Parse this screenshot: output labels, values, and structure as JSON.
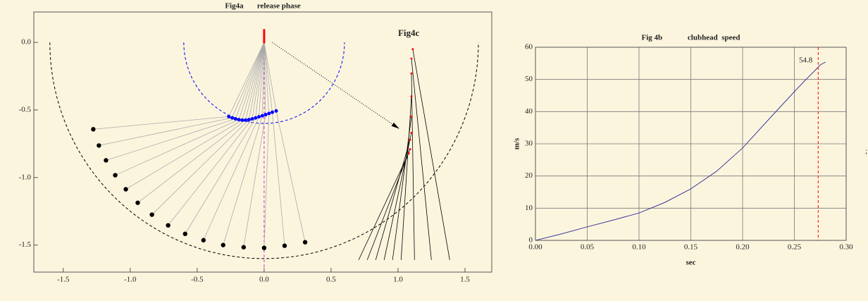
{
  "chart_data": [
    {
      "type": "scatter",
      "title": "Fig4a       release phase",
      "inset_title": "Fig4c",
      "xlim": [
        -1.72,
        1.7
      ],
      "ylim": [
        -1.7,
        0.225
      ],
      "xticks": [
        -1.5,
        {
          "value": -1,
          "label": "-1.0"
        },
        -0.5,
        {
          "value": 0,
          "label": "0.0"
        },
        0.5,
        {
          "value": 1,
          "label": "1.0"
        },
        1.5
      ],
      "yticks": [
        {
          "value": 0,
          "label": "0.0"
        },
        -0.5,
        {
          "value": -1,
          "label": "-1.0"
        },
        -1.5
      ],
      "pivot": [
        0,
        0
      ],
      "series": [
        {
          "color": "#0000ff",
          "x": [
            -0.264,
            -0.239,
            -0.214,
            -0.189,
            -0.164,
            -0.139,
            -0.114,
            -0.089,
            -0.064,
            -0.039,
            -0.014,
            0.011,
            0.036,
            0.061,
            0.09
          ],
          "y": [
            -0.549,
            -0.558,
            -0.566,
            -0.572,
            -0.575,
            -0.575,
            -0.572,
            -0.566,
            -0.559,
            -0.551,
            -0.543,
            -0.535,
            -0.526,
            -0.517,
            -0.507
          ]
        },
        {
          "color": "#000000",
          "x": [
            -1.276,
            -1.234,
            -1.181,
            -1.112,
            -1.033,
            -0.944,
            -0.838,
            -0.717,
            -0.59,
            -0.453,
            -0.306,
            -0.153,
            0.0,
            0.153,
            0.306
          ],
          "y": [
            -0.643,
            -0.763,
            -0.873,
            -0.983,
            -1.087,
            -1.187,
            -1.275,
            -1.354,
            -1.417,
            -1.464,
            -1.5,
            -1.516,
            -1.521,
            -1.505,
            -1.479
          ]
        },
        {
          "color": "#ff0000",
          "x": [
            0,
            0,
            0,
            0,
            0,
            0,
            0,
            0
          ],
          "y": [
            0.0,
            0.013,
            0.026,
            0.039,
            0.052,
            0.065,
            0.078,
            0.091
          ]
        }
      ],
      "circles": [
        {
          "r": 0.6,
          "color": "#0000ff"
        },
        {
          "r": 1.6,
          "color": "#000000"
        }
      ],
      "axis_line": {
        "x": 0,
        "color": "#cc33cc"
      },
      "club_lines": {
        "color": "#000000",
        "tip_color": "#ff0000",
        "x1": [
          1.08,
          1.09,
          1.09,
          1.1,
          1.1,
          1.1,
          1.1,
          1.1,
          1.11
        ],
        "y1": [
          -0.82,
          -0.79,
          -0.72,
          -0.67,
          -0.55,
          -0.4,
          -0.23,
          -0.12,
          -0.05
        ],
        "x2": [
          0.706,
          0.77,
          0.833,
          0.896,
          0.959,
          1.023,
          1.123,
          1.249,
          1.386
        ],
        "y2": [
          -1.61,
          -1.61,
          -1.61,
          -1.61,
          -1.61,
          -1.61,
          -1.61,
          -1.61,
          -1.61
        ]
      },
      "arrow": {
        "from": [
          0.06,
          0.0
        ],
        "to": [
          1.01,
          -0.64
        ]
      }
    },
    {
      "type": "line",
      "title": "Fig 4b             clubhead  speed",
      "x_label": "sec",
      "y_label": "m/s",
      "x": [
        0,
        0.025,
        0.05,
        0.075,
        0.1,
        0.125,
        0.15,
        0.175,
        0.2,
        0.225,
        0.25,
        0.26,
        0.27,
        0.275,
        0.28
      ],
      "series": [
        {
          "color": "#3a3a9a",
          "values": [
            0,
            2.0,
            4.2,
            6.3,
            8.5,
            11.8,
            16.0,
            21.5,
            28.7,
            37.5,
            46.2,
            49.6,
            52.8,
            54.5,
            55.4
          ]
        }
      ],
      "xlim": [
        0,
        0.3
      ],
      "ylim": [
        0,
        60
      ],
      "xticks": [
        {
          "value": 0,
          "label": "0.00"
        },
        0.05,
        {
          "value": 0.1,
          "label": "0.10"
        },
        0.15,
        {
          "value": 0.2,
          "label": "0.20"
        },
        0.25,
        {
          "value": 0.3,
          "label": "0.30"
        }
      ],
      "yticks": [
        0,
        10,
        20,
        30,
        40,
        50,
        60
      ],
      "grid": true,
      "peak": {
        "value": 54.8,
        "x": 0.273,
        "color": "#ff0000"
      }
    }
  ],
  "trailing_mark": ";"
}
